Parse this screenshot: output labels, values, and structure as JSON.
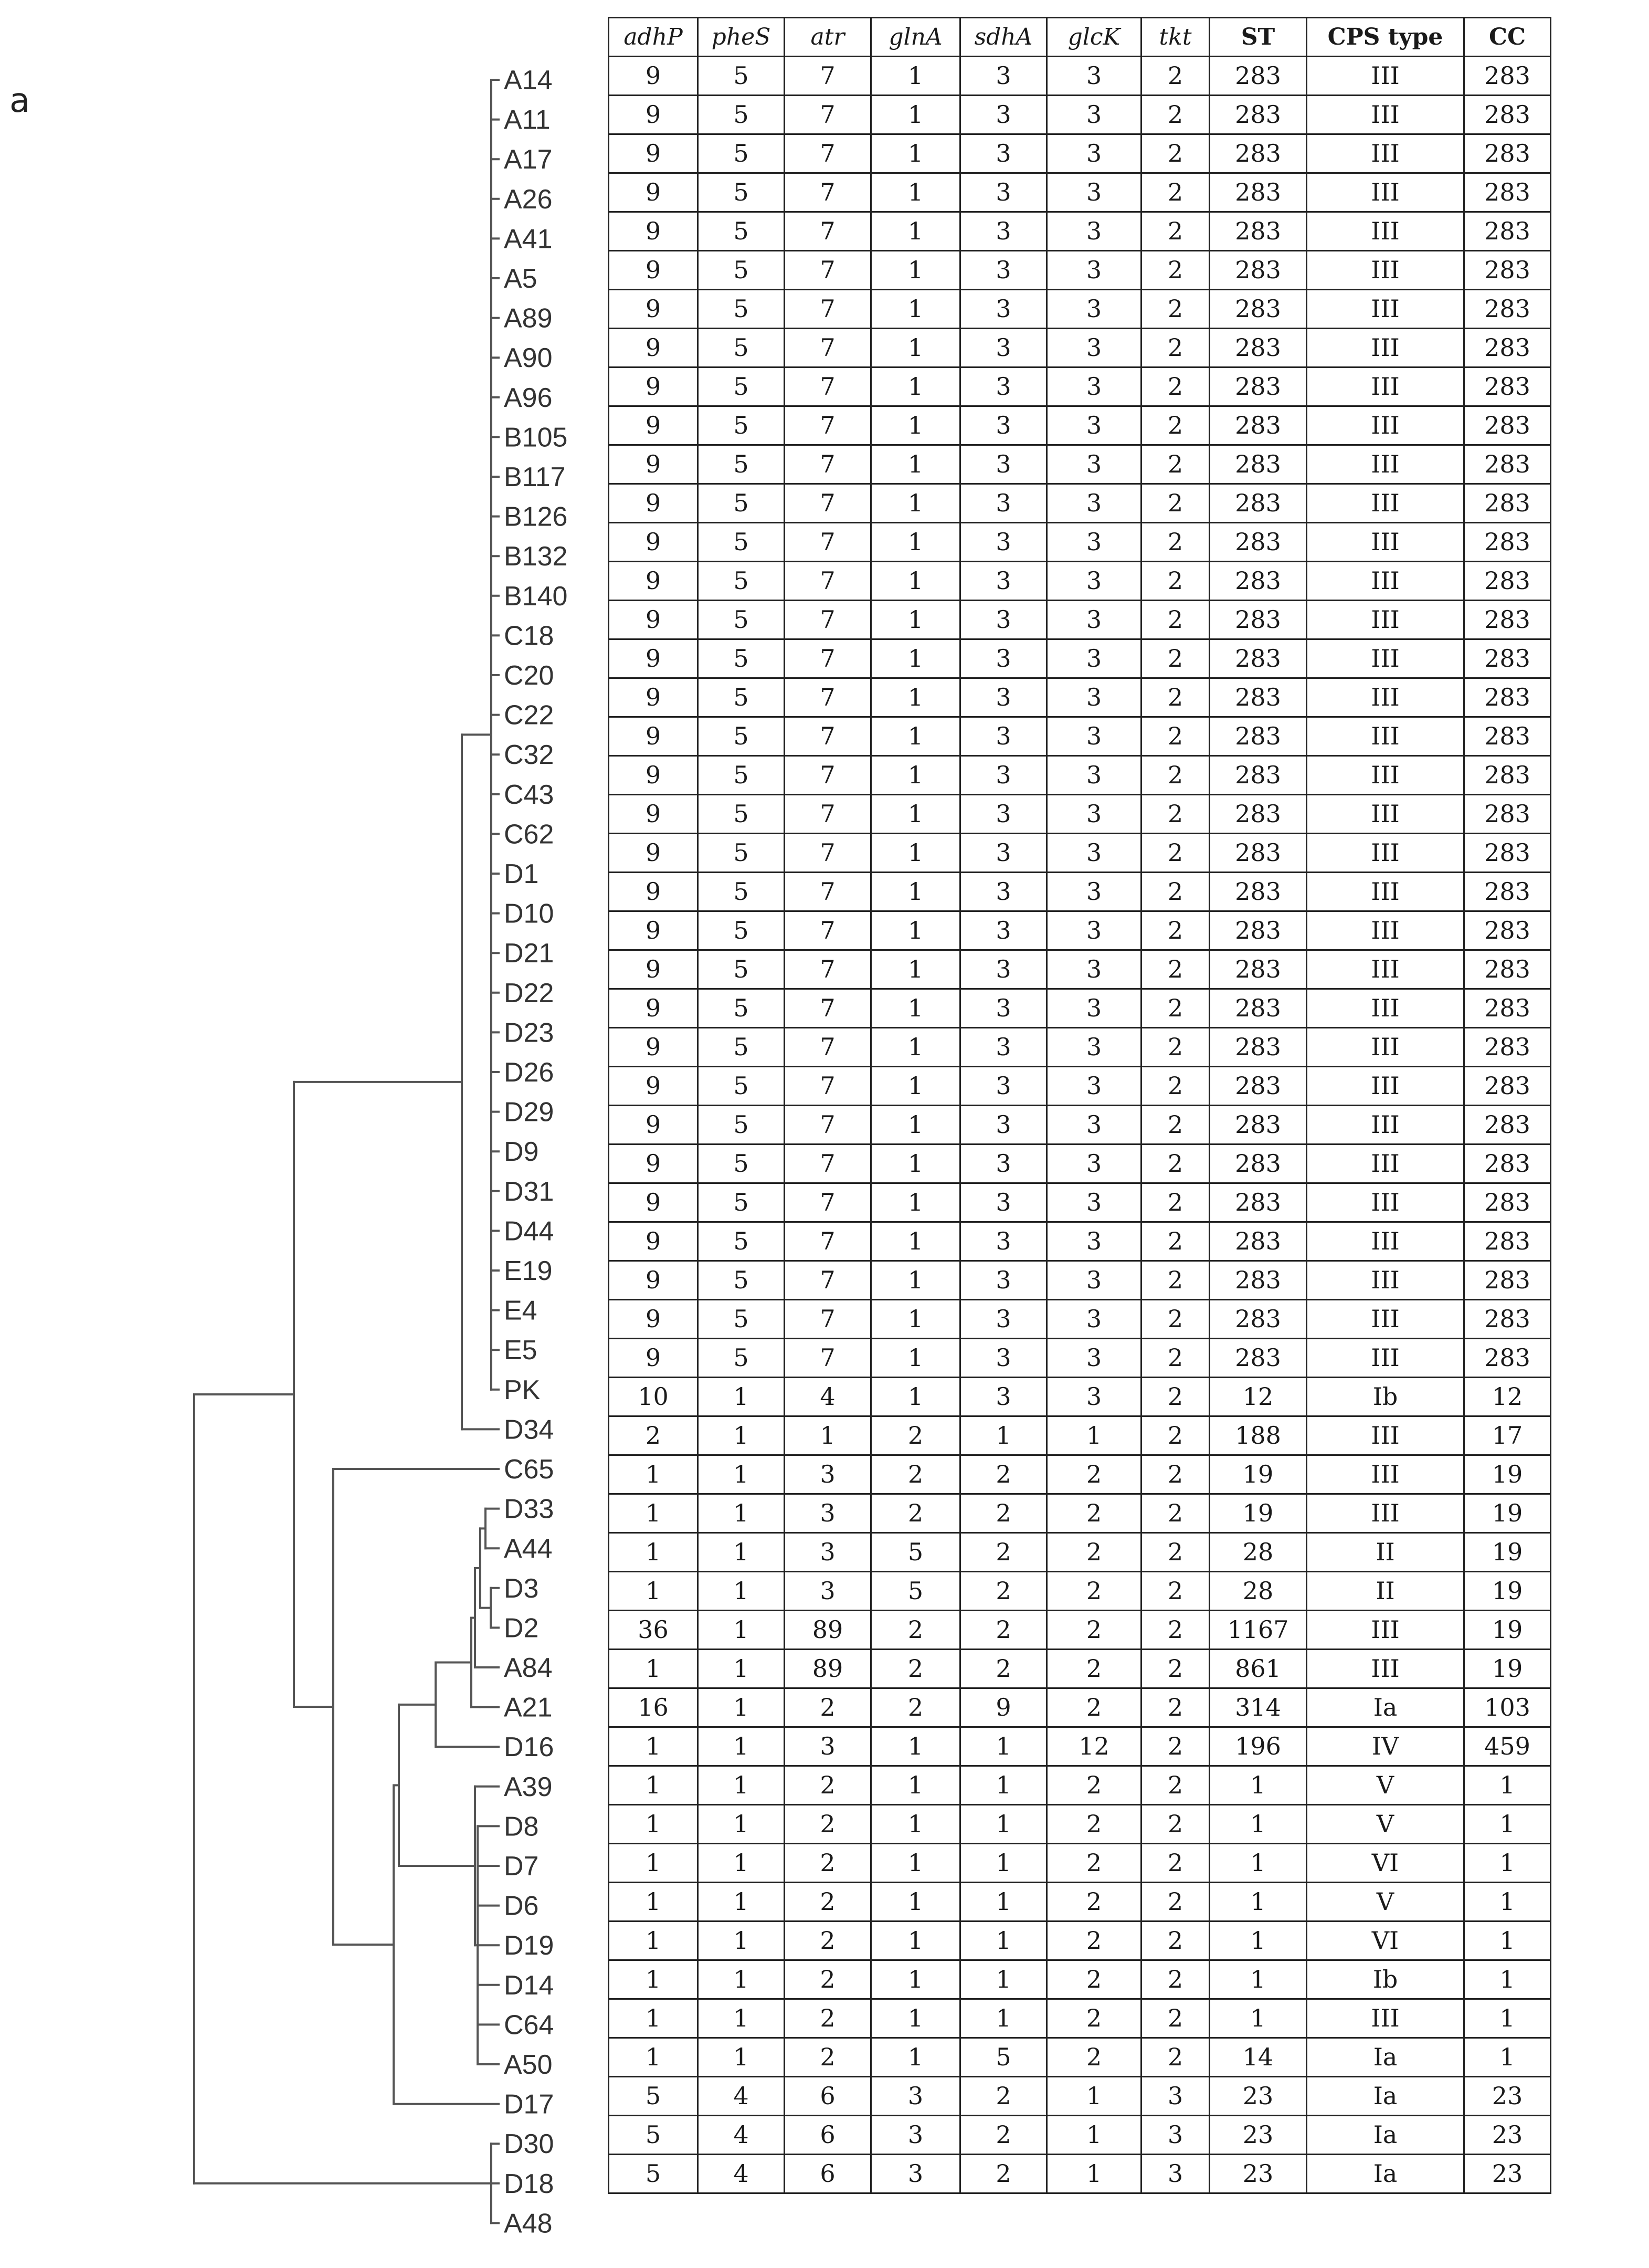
{
  "panel_label": "a",
  "chart_data": {
    "type": "table",
    "title": "",
    "columns": [
      "adhP",
      "pheS",
      "atr",
      "glnA",
      "sdhA",
      "glcK",
      "tkt",
      "ST",
      "CPS type",
      "CC"
    ],
    "italic_columns": [
      "adhP",
      "pheS",
      "atr",
      "glnA",
      "sdhA",
      "glcK",
      "tkt"
    ],
    "rows": [
      {
        "isolate": "A14",
        "values": [
          "9",
          "5",
          "7",
          "1",
          "3",
          "3",
          "2",
          "283",
          "III",
          "283"
        ]
      },
      {
        "isolate": "A11",
        "values": [
          "9",
          "5",
          "7",
          "1",
          "3",
          "3",
          "2",
          "283",
          "III",
          "283"
        ]
      },
      {
        "isolate": "A17",
        "values": [
          "9",
          "5",
          "7",
          "1",
          "3",
          "3",
          "2",
          "283",
          "III",
          "283"
        ]
      },
      {
        "isolate": "A26",
        "values": [
          "9",
          "5",
          "7",
          "1",
          "3",
          "3",
          "2",
          "283",
          "III",
          "283"
        ]
      },
      {
        "isolate": "A41",
        "values": [
          "9",
          "5",
          "7",
          "1",
          "3",
          "3",
          "2",
          "283",
          "III",
          "283"
        ]
      },
      {
        "isolate": "A5",
        "values": [
          "9",
          "5",
          "7",
          "1",
          "3",
          "3",
          "2",
          "283",
          "III",
          "283"
        ]
      },
      {
        "isolate": "A89",
        "values": [
          "9",
          "5",
          "7",
          "1",
          "3",
          "3",
          "2",
          "283",
          "III",
          "283"
        ]
      },
      {
        "isolate": "A90",
        "values": [
          "9",
          "5",
          "7",
          "1",
          "3",
          "3",
          "2",
          "283",
          "III",
          "283"
        ]
      },
      {
        "isolate": "A96",
        "values": [
          "9",
          "5",
          "7",
          "1",
          "3",
          "3",
          "2",
          "283",
          "III",
          "283"
        ]
      },
      {
        "isolate": "B105",
        "values": [
          "9",
          "5",
          "7",
          "1",
          "3",
          "3",
          "2",
          "283",
          "III",
          "283"
        ]
      },
      {
        "isolate": "B117",
        "values": [
          "9",
          "5",
          "7",
          "1",
          "3",
          "3",
          "2",
          "283",
          "III",
          "283"
        ]
      },
      {
        "isolate": "B126",
        "values": [
          "9",
          "5",
          "7",
          "1",
          "3",
          "3",
          "2",
          "283",
          "III",
          "283"
        ]
      },
      {
        "isolate": "B132",
        "values": [
          "9",
          "5",
          "7",
          "1",
          "3",
          "3",
          "2",
          "283",
          "III",
          "283"
        ]
      },
      {
        "isolate": "B140",
        "values": [
          "9",
          "5",
          "7",
          "1",
          "3",
          "3",
          "2",
          "283",
          "III",
          "283"
        ]
      },
      {
        "isolate": "C18",
        "values": [
          "9",
          "5",
          "7",
          "1",
          "3",
          "3",
          "2",
          "283",
          "III",
          "283"
        ]
      },
      {
        "isolate": "C20",
        "values": [
          "9",
          "5",
          "7",
          "1",
          "3",
          "3",
          "2",
          "283",
          "III",
          "283"
        ]
      },
      {
        "isolate": "C22",
        "values": [
          "9",
          "5",
          "7",
          "1",
          "3",
          "3",
          "2",
          "283",
          "III",
          "283"
        ]
      },
      {
        "isolate": "C32",
        "values": [
          "9",
          "5",
          "7",
          "1",
          "3",
          "3",
          "2",
          "283",
          "III",
          "283"
        ]
      },
      {
        "isolate": "C43",
        "values": [
          "9",
          "5",
          "7",
          "1",
          "3",
          "3",
          "2",
          "283",
          "III",
          "283"
        ]
      },
      {
        "isolate": "C62",
        "values": [
          "9",
          "5",
          "7",
          "1",
          "3",
          "3",
          "2",
          "283",
          "III",
          "283"
        ]
      },
      {
        "isolate": "D1",
        "values": [
          "9",
          "5",
          "7",
          "1",
          "3",
          "3",
          "2",
          "283",
          "III",
          "283"
        ]
      },
      {
        "isolate": "D10",
        "values": [
          "9",
          "5",
          "7",
          "1",
          "3",
          "3",
          "2",
          "283",
          "III",
          "283"
        ]
      },
      {
        "isolate": "D21",
        "values": [
          "9",
          "5",
          "7",
          "1",
          "3",
          "3",
          "2",
          "283",
          "III",
          "283"
        ]
      },
      {
        "isolate": "D22",
        "values": [
          "9",
          "5",
          "7",
          "1",
          "3",
          "3",
          "2",
          "283",
          "III",
          "283"
        ]
      },
      {
        "isolate": "D23",
        "values": [
          "9",
          "5",
          "7",
          "1",
          "3",
          "3",
          "2",
          "283",
          "III",
          "283"
        ]
      },
      {
        "isolate": "D26",
        "values": [
          "9",
          "5",
          "7",
          "1",
          "3",
          "3",
          "2",
          "283",
          "III",
          "283"
        ]
      },
      {
        "isolate": "D29",
        "values": [
          "9",
          "5",
          "7",
          "1",
          "3",
          "3",
          "2",
          "283",
          "III",
          "283"
        ]
      },
      {
        "isolate": "D9",
        "values": [
          "9",
          "5",
          "7",
          "1",
          "3",
          "3",
          "2",
          "283",
          "III",
          "283"
        ]
      },
      {
        "isolate": "D31",
        "values": [
          "9",
          "5",
          "7",
          "1",
          "3",
          "3",
          "2",
          "283",
          "III",
          "283"
        ]
      },
      {
        "isolate": "D44",
        "values": [
          "9",
          "5",
          "7",
          "1",
          "3",
          "3",
          "2",
          "283",
          "III",
          "283"
        ]
      },
      {
        "isolate": "E19",
        "values": [
          "9",
          "5",
          "7",
          "1",
          "3",
          "3",
          "2",
          "283",
          "III",
          "283"
        ]
      },
      {
        "isolate": "E4",
        "values": [
          "9",
          "5",
          "7",
          "1",
          "3",
          "3",
          "2",
          "283",
          "III",
          "283"
        ]
      },
      {
        "isolate": "E5",
        "values": [
          "9",
          "5",
          "7",
          "1",
          "3",
          "3",
          "2",
          "283",
          "III",
          "283"
        ]
      },
      {
        "isolate": "PK",
        "values": [
          "9",
          "5",
          "7",
          "1",
          "3",
          "3",
          "2",
          "283",
          "III",
          "283"
        ]
      },
      {
        "isolate": "D34",
        "values": [
          "10",
          "1",
          "4",
          "1",
          "3",
          "3",
          "2",
          "12",
          "Ib",
          "12"
        ]
      },
      {
        "isolate": "C65",
        "values": [
          "2",
          "1",
          "1",
          "2",
          "1",
          "1",
          "2",
          "188",
          "III",
          "17"
        ]
      },
      {
        "isolate": "D33",
        "values": [
          "1",
          "1",
          "3",
          "2",
          "2",
          "2",
          "2",
          "19",
          "III",
          "19"
        ]
      },
      {
        "isolate": "A44",
        "values": [
          "1",
          "1",
          "3",
          "2",
          "2",
          "2",
          "2",
          "19",
          "III",
          "19"
        ]
      },
      {
        "isolate": "D3",
        "values": [
          "1",
          "1",
          "3",
          "5",
          "2",
          "2",
          "2",
          "28",
          "II",
          "19"
        ]
      },
      {
        "isolate": "D2",
        "values": [
          "1",
          "1",
          "3",
          "5",
          "2",
          "2",
          "2",
          "28",
          "II",
          "19"
        ]
      },
      {
        "isolate": "A84",
        "values": [
          "36",
          "1",
          "89",
          "2",
          "2",
          "2",
          "2",
          "1167",
          "III",
          "19"
        ]
      },
      {
        "isolate": "A21",
        "values": [
          "1",
          "1",
          "89",
          "2",
          "2",
          "2",
          "2",
          "861",
          "III",
          "19"
        ]
      },
      {
        "isolate": "D16",
        "values": [
          "16",
          "1",
          "2",
          "2",
          "9",
          "2",
          "2",
          "314",
          "Ia",
          "103"
        ]
      },
      {
        "isolate": "A39",
        "values": [
          "1",
          "1",
          "3",
          "1",
          "1",
          "12",
          "2",
          "196",
          "IV",
          "459"
        ]
      },
      {
        "isolate": "D8",
        "values": [
          "1",
          "1",
          "2",
          "1",
          "1",
          "2",
          "2",
          "1",
          "V",
          "1"
        ]
      },
      {
        "isolate": "D7",
        "values": [
          "1",
          "1",
          "2",
          "1",
          "1",
          "2",
          "2",
          "1",
          "V",
          "1"
        ]
      },
      {
        "isolate": "D6",
        "values": [
          "1",
          "1",
          "2",
          "1",
          "1",
          "2",
          "2",
          "1",
          "VI",
          "1"
        ]
      },
      {
        "isolate": "D19",
        "values": [
          "1",
          "1",
          "2",
          "1",
          "1",
          "2",
          "2",
          "1",
          "V",
          "1"
        ]
      },
      {
        "isolate": "D14",
        "values": [
          "1",
          "1",
          "2",
          "1",
          "1",
          "2",
          "2",
          "1",
          "VI",
          "1"
        ]
      },
      {
        "isolate": "C64",
        "values": [
          "1",
          "1",
          "2",
          "1",
          "1",
          "2",
          "2",
          "1",
          "Ib",
          "1"
        ]
      },
      {
        "isolate": "A50",
        "values": [
          "1",
          "1",
          "2",
          "1",
          "1",
          "2",
          "2",
          "1",
          "III",
          "1"
        ]
      },
      {
        "isolate": "D17",
        "values": [
          "1",
          "1",
          "2",
          "1",
          "5",
          "2",
          "2",
          "14",
          "Ia",
          "1"
        ]
      },
      {
        "isolate": "D30",
        "values": [
          "5",
          "4",
          "6",
          "3",
          "2",
          "1",
          "3",
          "23",
          "Ia",
          "23"
        ]
      },
      {
        "isolate": "D18",
        "values": [
          "5",
          "4",
          "6",
          "3",
          "2",
          "1",
          "3",
          "23",
          "Ia",
          "23"
        ]
      },
      {
        "isolate": "A48",
        "values": [
          "5",
          "4",
          "6",
          "3",
          "2",
          "1",
          "3",
          "23",
          "Ia",
          "23"
        ]
      }
    ],
    "dendrogram": {
      "type": "dendrogram",
      "leaf_order": [
        "A14",
        "A11",
        "A17",
        "A26",
        "A41",
        "A5",
        "A89",
        "A90",
        "A96",
        "B105",
        "B117",
        "B126",
        "B132",
        "B140",
        "C18",
        "C20",
        "C22",
        "C32",
        "C43",
        "C62",
        "D1",
        "D10",
        "D21",
        "D22",
        "D23",
        "D26",
        "D29",
        "D9",
        "D31",
        "D44",
        "E19",
        "E4",
        "E5",
        "PK",
        "D34",
        "C65",
        "D33",
        "A44",
        "D3",
        "D2",
        "A84",
        "A21",
        "D16",
        "A39",
        "D8",
        "D7",
        "D6",
        "D19",
        "D14",
        "C64",
        "A50",
        "D17",
        "D30",
        "D18",
        "A48"
      ]
    }
  }
}
